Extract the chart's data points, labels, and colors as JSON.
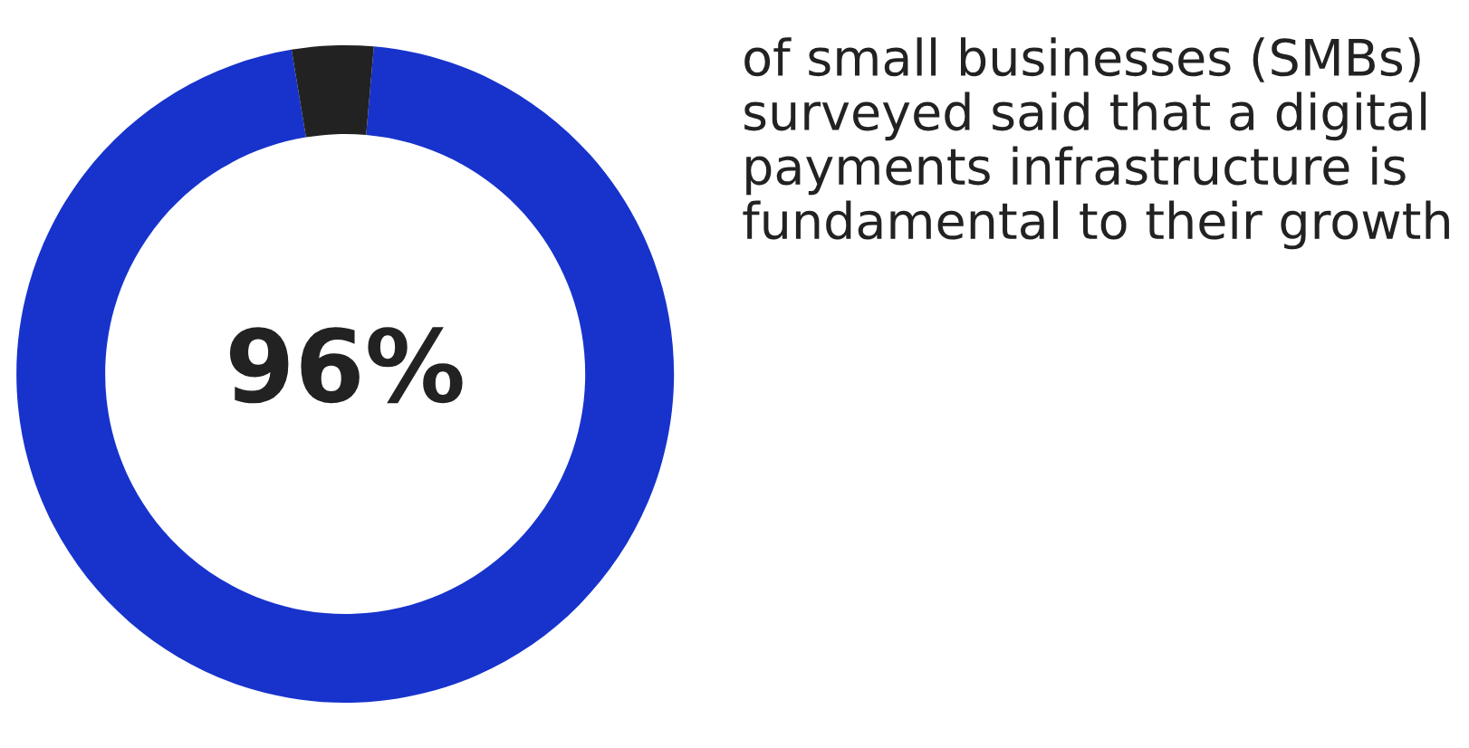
{
  "chart_data": {
    "type": "donut",
    "categories": [
      null,
      null
    ],
    "values": [
      96,
      4
    ],
    "colors": [
      "#1733cc",
      "#222222"
    ],
    "value_labels": [
      "96%",
      null
    ],
    "annotations": [
      "of small businesses (SMBs) surveyed said that a digital payments infrastructure is fundamental to their growth"
    ]
  }
}
